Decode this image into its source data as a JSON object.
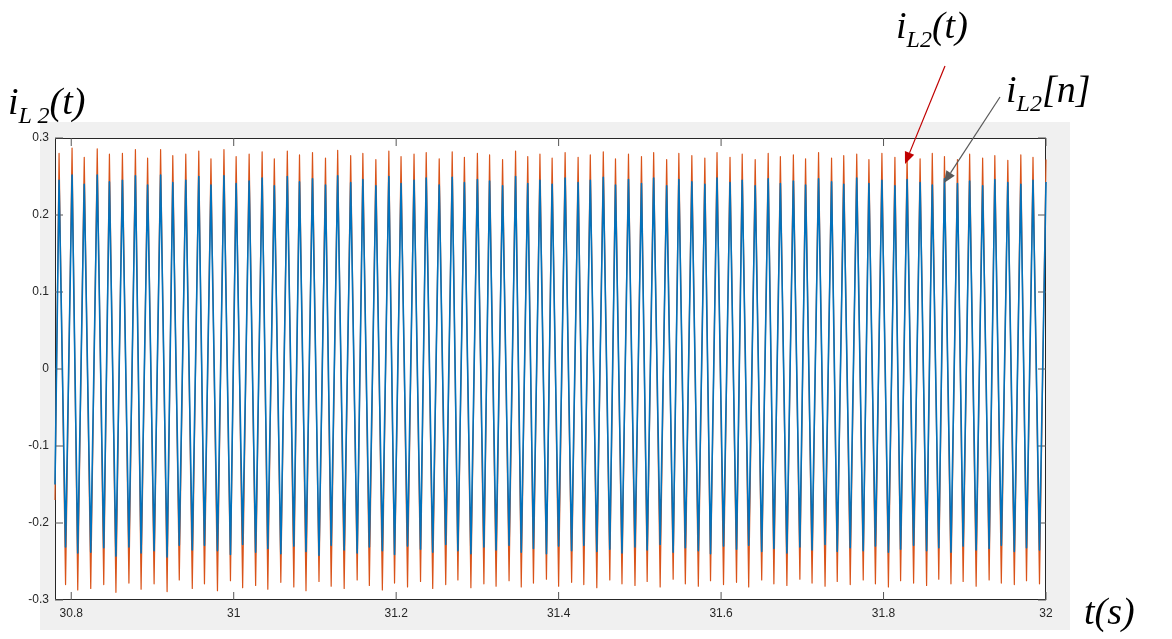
{
  "chart_data": {
    "type": "line",
    "xlabel": "t(s)",
    "ylabel": "i$_{L 2}$(t)",
    "x": [
      30.78,
      30.785,
      30.793,
      30.801,
      30.808,
      30.816,
      30.824,
      30.832,
      30.84,
      30.847,
      30.855,
      30.863,
      30.871,
      30.879,
      30.886,
      30.894,
      30.902,
      30.91,
      30.918,
      30.925,
      30.933,
      30.941,
      30.949,
      30.957,
      30.964,
      30.972,
      30.98,
      30.988,
      30.996,
      31.003,
      31.011,
      31.019,
      31.027,
      31.035,
      31.042,
      31.05,
      31.058,
      31.066,
      31.074,
      31.081,
      31.089,
      31.097,
      31.105,
      31.113,
      31.12,
      31.128,
      31.136,
      31.144,
      31.152,
      31.159,
      31.167,
      31.175,
      31.183,
      31.191,
      31.198,
      31.206,
      31.214,
      31.222,
      31.23,
      31.237,
      31.245,
      31.253,
      31.261,
      31.269,
      31.276,
      31.284,
      31.292,
      31.3,
      31.308,
      31.315,
      31.323,
      31.331,
      31.339,
      31.347,
      31.354,
      31.362,
      31.369,
      31.377,
      31.385,
      31.392,
      31.4,
      31.408,
      31.416,
      31.424,
      31.431,
      31.439,
      31.447,
      31.455,
      31.463,
      31.47,
      31.478,
      31.486,
      31.494,
      31.502,
      31.509,
      31.517,
      31.525,
      31.533,
      31.541,
      31.548,
      31.556,
      31.564,
      31.572,
      31.58,
      31.587,
      31.595,
      31.603,
      31.611,
      31.619,
      31.626,
      31.634,
      31.642,
      31.65,
      31.658,
      31.665,
      31.673,
      31.681,
      31.689,
      31.697,
      31.704,
      31.712,
      31.72,
      31.728,
      31.736,
      31.743,
      31.751,
      31.759,
      31.767,
      31.775,
      31.782,
      31.79,
      31.798,
      31.806,
      31.814,
      31.821,
      31.829,
      31.837,
      31.845,
      31.853,
      31.86,
      31.868,
      31.875,
      31.883,
      31.891,
      31.898,
      31.906,
      31.914,
      31.922,
      31.93,
      31.937,
      31.945,
      31.953,
      31.961,
      31.969,
      31.976,
      31.984,
      31.992,
      32.0
    ],
    "series": [
      {
        "name": "i$_{L2}$(t)",
        "color": "#d95319",
        "values": [
          -0.17,
          0.28,
          -0.28,
          0.287,
          -0.287,
          0.275,
          -0.285,
          0.286,
          -0.28,
          0.279,
          -0.29,
          0.28,
          -0.278,
          0.285,
          -0.286,
          0.274,
          -0.279,
          0.285,
          -0.289,
          0.277,
          -0.274,
          0.279,
          -0.285,
          0.283,
          -0.279,
          0.273,
          -0.288,
          0.285,
          -0.275,
          0.276,
          -0.284,
          0.279,
          -0.281,
          0.282,
          -0.286,
          0.273,
          -0.277,
          0.283,
          -0.283,
          0.278,
          -0.288,
          0.281,
          -0.276,
          0.274,
          -0.282,
          0.284,
          -0.285,
          0.277,
          -0.274,
          0.28,
          -0.281,
          0.272,
          -0.287,
          0.283,
          -0.278,
          0.276,
          -0.283,
          0.279,
          -0.276,
          0.281,
          -0.285,
          0.273,
          -0.28,
          0.282,
          -0.274,
          0.275,
          -0.284,
          0.28,
          -0.279,
          0.278,
          -0.282,
          0.272,
          -0.275,
          0.283,
          -0.283,
          0.276,
          -0.278,
          0.279,
          -0.273,
          0.274,
          -0.282,
          0.281,
          -0.277,
          0.275,
          -0.28,
          0.278,
          -0.284,
          0.282,
          -0.274,
          0.273,
          -0.279,
          0.279,
          -0.281,
          0.276,
          -0.276,
          0.281,
          -0.283,
          0.272,
          -0.273,
          0.28,
          -0.279,
          0.277,
          -0.282,
          0.274,
          -0.275,
          0.281,
          -0.28,
          0.275,
          -0.277,
          0.279,
          -0.283,
          0.272,
          -0.274,
          0.28,
          -0.279,
          0.276,
          -0.281,
          0.278,
          -0.273,
          0.273,
          -0.278,
          0.281,
          -0.282,
          0.274,
          -0.276,
          0.277,
          -0.28,
          0.279,
          -0.274,
          0.272,
          -0.279,
          0.28,
          -0.283,
          0.275,
          -0.275,
          0.278,
          -0.278,
          0.273,
          -0.281,
          0.28,
          -0.273,
          0.276,
          -0.279,
          0.272,
          -0.276,
          0.279,
          -0.282,
          0.274,
          -0.274,
          0.277,
          -0.278,
          0.271,
          -0.28,
          0.278,
          -0.275,
          0.275,
          -0.279,
          0.272
        ]
      },
      {
        "name": "i$_{L2}$[n]",
        "color": "#0072bd",
        "values": [
          -0.15,
          0.245,
          -0.231,
          0.252,
          -0.239,
          0.24,
          -0.238,
          0.252,
          -0.232,
          0.243,
          -0.243,
          0.245,
          -0.231,
          0.251,
          -0.239,
          0.239,
          -0.236,
          0.252,
          -0.244,
          0.242,
          -0.229,
          0.245,
          -0.235,
          0.25,
          -0.229,
          0.239,
          -0.236,
          0.251,
          -0.241,
          0.241,
          -0.228,
          0.244,
          -0.238,
          0.248,
          -0.233,
          0.238,
          -0.24,
          0.25,
          -0.23,
          0.243,
          -0.237,
          0.247,
          -0.242,
          0.239,
          -0.229,
          0.251,
          -0.235,
          0.242,
          -0.239,
          0.246,
          -0.231,
          0.238,
          -0.236,
          0.25,
          -0.241,
          0.241,
          -0.23,
          0.245,
          -0.234,
          0.248,
          -0.238,
          0.239,
          -0.228,
          0.249,
          -0.236,
          0.242,
          -0.24,
          0.246,
          -0.231,
          0.244,
          -0.235,
          0.238,
          -0.229,
          0.25,
          -0.238,
          0.241,
          -0.233,
          0.245,
          -0.24,
          0.24,
          -0.23,
          0.248,
          -0.236,
          0.242,
          -0.229,
          0.245,
          -0.237,
          0.249,
          -0.234,
          0.239,
          -0.239,
          0.246,
          -0.231,
          0.241,
          -0.235,
          0.248,
          -0.228,
          0.238,
          -0.238,
          0.246,
          -0.232,
          0.243,
          -0.236,
          0.24,
          -0.24,
          0.248,
          -0.23,
          0.242,
          -0.234,
          0.245,
          -0.229,
          0.238,
          -0.237,
          0.247,
          -0.233,
          0.241,
          -0.239,
          0.244,
          -0.231,
          0.239,
          -0.235,
          0.247,
          -0.228,
          0.243,
          -0.237,
          0.24,
          -0.232,
          0.248,
          -0.236,
          0.241,
          -0.23,
          0.245,
          -0.238,
          0.238,
          -0.234,
          0.246,
          -0.229,
          0.242,
          -0.236,
          0.239,
          -0.232,
          0.247,
          -0.238,
          0.241,
          -0.23,
          0.244,
          -0.235,
          0.238,
          -0.233,
          0.246,
          -0.229,
          0.242,
          -0.237,
          0.24,
          -0.232,
          0.245,
          -0.235,
          0.243
        ]
      }
    ],
    "xlim": [
      30.78,
      32
    ],
    "xticks": [
      30.8,
      31,
      31.2,
      31.4,
      31.6,
      31.8,
      32
    ],
    "ylim": [
      -0.3,
      0.3
    ],
    "yticks": [
      -0.3,
      -0.2,
      -0.1,
      0,
      0.1,
      0.2,
      0.3
    ],
    "grid": false,
    "legend": false,
    "marker": "none",
    "line_style": "solid"
  }
}
